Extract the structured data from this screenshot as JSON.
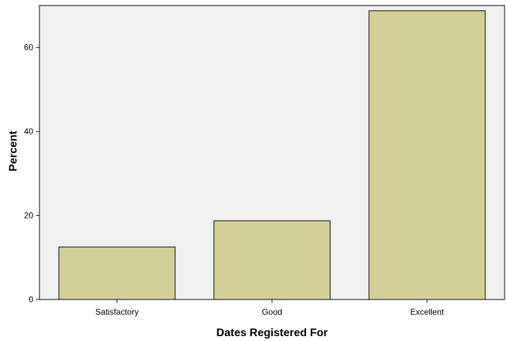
{
  "chart_data": {
    "type": "bar",
    "title": "",
    "xlabel": "Dates Registered For",
    "ylabel": "Percent",
    "categories": [
      "Satisfactory",
      "Good",
      "Excellent"
    ],
    "values": [
      12.5,
      18.75,
      68.75
    ],
    "ylim": [
      0,
      70
    ],
    "yticks": [
      0,
      20,
      40,
      60
    ],
    "grid": false,
    "legend": "none",
    "colors": {
      "bar_fill": "#d3cf99",
      "bar_stroke": "#000000",
      "plot_background": "#f0f0f0"
    }
  }
}
